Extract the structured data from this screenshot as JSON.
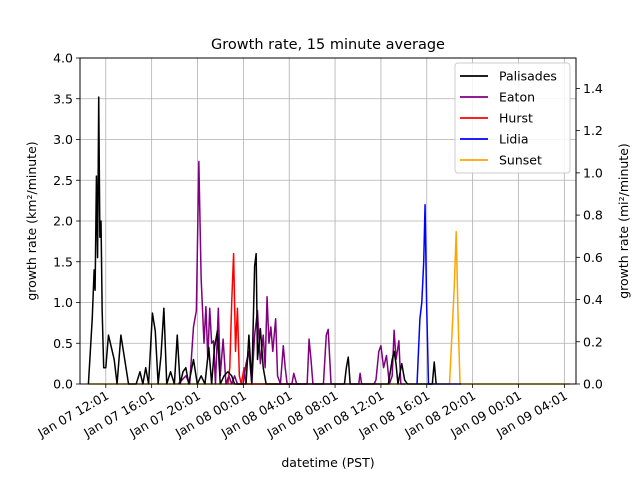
{
  "chart_data": {
    "type": "line",
    "title": "Growth rate, 15 minute average",
    "xlabel": "datetime (PST)",
    "ylabel_left": "growth rate (km²/minute)",
    "ylabel_right": "growth rate (mi²/minute)",
    "ylim_left": [
      0,
      4.0
    ],
    "ylim_right": [
      0,
      1.544
    ],
    "xlim": [
      "2025-01-07T09:46",
      "2025-01-09T05:02"
    ],
    "grid": true,
    "legend_placement": "top-right",
    "x_ticks": [
      "Jan 07 12:01",
      "Jan 07 16:01",
      "Jan 07 20:01",
      "Jan 08 00:01",
      "Jan 08 04:01",
      "Jan 08 08:01",
      "Jan 08 12:01",
      "Jan 08 16:01",
      "Jan 08 20:01",
      "Jan 09 00:01",
      "Jan 09 04:01"
    ],
    "y_ticks_left": [
      "0.0",
      "0.5",
      "1.0",
      "1.5",
      "2.0",
      "2.5",
      "3.0",
      "3.5",
      "4.0"
    ],
    "y_ticks_right": [
      "0.0",
      "0.2",
      "0.4",
      "0.6",
      "0.8",
      "1.0",
      "1.2",
      "1.4"
    ],
    "series": [
      {
        "name": "Palisades",
        "color": "#000000",
        "points": [
          [
            "2025-01-07T10:30",
            0.0
          ],
          [
            "2025-01-07T10:50",
            0.8
          ],
          [
            "2025-01-07T11:00",
            1.4
          ],
          [
            "2025-01-07T11:05",
            1.15
          ],
          [
            "2025-01-07T11:12",
            2.55
          ],
          [
            "2025-01-07T11:18",
            1.55
          ],
          [
            "2025-01-07T11:24",
            3.52
          ],
          [
            "2025-01-07T11:30",
            1.8
          ],
          [
            "2025-01-07T11:36",
            2.0
          ],
          [
            "2025-01-07T11:42",
            0.9
          ],
          [
            "2025-01-07T11:50",
            0.2
          ],
          [
            "2025-01-07T12:01",
            0.2
          ],
          [
            "2025-01-07T12:15",
            0.6
          ],
          [
            "2025-01-07T12:30",
            0.45
          ],
          [
            "2025-01-07T12:45",
            0.3
          ],
          [
            "2025-01-07T13:00",
            0.0
          ],
          [
            "2025-01-07T13:20",
            0.6
          ],
          [
            "2025-01-07T13:40",
            0.3
          ],
          [
            "2025-01-07T14:00",
            0.0
          ],
          [
            "2025-01-07T14:40",
            0.0
          ],
          [
            "2025-01-07T15:00",
            0.15
          ],
          [
            "2025-01-07T15:15",
            0.0
          ],
          [
            "2025-01-07T15:30",
            0.2
          ],
          [
            "2025-01-07T15:45",
            0.0
          ],
          [
            "2025-01-07T16:05",
            0.87
          ],
          [
            "2025-01-07T16:20",
            0.65
          ],
          [
            "2025-01-07T16:35",
            0.0
          ],
          [
            "2025-01-07T16:50",
            0.35
          ],
          [
            "2025-01-07T17:05",
            0.93
          ],
          [
            "2025-01-07T17:20",
            0.0
          ],
          [
            "2025-01-07T17:40",
            0.15
          ],
          [
            "2025-01-07T18:00",
            0.0
          ],
          [
            "2025-01-07T18:15",
            0.6
          ],
          [
            "2025-01-07T18:30",
            0.0
          ],
          [
            "2025-01-07T18:45",
            0.15
          ],
          [
            "2025-01-07T19:00",
            0.2
          ],
          [
            "2025-01-07T19:15",
            0.0
          ],
          [
            "2025-01-07T19:40",
            0.3
          ],
          [
            "2025-01-07T20:00",
            0.0
          ],
          [
            "2025-01-07T20:20",
            0.1
          ],
          [
            "2025-01-07T20:40",
            0.0
          ],
          [
            "2025-01-07T21:00",
            0.45
          ],
          [
            "2025-01-07T21:15",
            0.0
          ],
          [
            "2025-01-07T21:30",
            0.45
          ],
          [
            "2025-01-07T21:45",
            0.65
          ],
          [
            "2025-01-07T22:00",
            0.0
          ],
          [
            "2025-01-07T22:20",
            0.1
          ],
          [
            "2025-01-07T22:40",
            0.15
          ],
          [
            "2025-01-07T23:00",
            0.1
          ],
          [
            "2025-01-07T23:15",
            0.0
          ],
          [
            "2025-01-08T00:15",
            0.0
          ],
          [
            "2025-01-08T00:30",
            0.6
          ],
          [
            "2025-01-08T00:45",
            0.0
          ],
          [
            "2025-01-08T01:00",
            1.45
          ],
          [
            "2025-01-08T01:08",
            1.6
          ],
          [
            "2025-01-08T01:15",
            0.3
          ],
          [
            "2025-01-08T01:30",
            0.68
          ],
          [
            "2025-01-08T01:45",
            0.2
          ],
          [
            "2025-01-08T02:00",
            0.0
          ],
          [
            "2025-01-08T08:50",
            0.0
          ],
          [
            "2025-01-08T09:00",
            0.2
          ],
          [
            "2025-01-08T09:10",
            0.33
          ],
          [
            "2025-01-08T09:20",
            0.0
          ],
          [
            "2025-01-08T12:40",
            0.0
          ],
          [
            "2025-01-08T13:00",
            0.3
          ],
          [
            "2025-01-08T13:10",
            0.4
          ],
          [
            "2025-01-08T13:20",
            0.25
          ],
          [
            "2025-01-08T13:30",
            0.0
          ],
          [
            "2025-01-08T13:50",
            0.25
          ],
          [
            "2025-01-08T14:05",
            0.05
          ],
          [
            "2025-01-08T14:20",
            0.0
          ],
          [
            "2025-01-08T16:30",
            0.0
          ],
          [
            "2025-01-08T16:40",
            0.27
          ],
          [
            "2025-01-08T16:50",
            0.0
          ]
        ]
      },
      {
        "name": "Eaton",
        "color": "#800080",
        "points": [
          [
            "2025-01-07T18:20",
            0.0
          ],
          [
            "2025-01-07T19:00",
            0.1
          ],
          [
            "2025-01-07T19:20",
            0.0
          ],
          [
            "2025-01-07T19:40",
            0.7
          ],
          [
            "2025-01-07T19:55",
            0.9
          ],
          [
            "2025-01-07T20:08",
            2.73
          ],
          [
            "2025-01-07T20:20",
            1.3
          ],
          [
            "2025-01-07T20:35",
            0.5
          ],
          [
            "2025-01-07T20:45",
            0.95
          ],
          [
            "2025-01-07T20:55",
            0.3
          ],
          [
            "2025-01-07T21:05",
            0.93
          ],
          [
            "2025-01-07T21:15",
            0.5
          ],
          [
            "2025-01-07T21:25",
            0.53
          ],
          [
            "2025-01-07T21:35",
            0.0
          ],
          [
            "2025-01-07T21:50",
            0.93
          ],
          [
            "2025-01-07T22:00",
            0.1
          ],
          [
            "2025-01-07T22:15",
            0.55
          ],
          [
            "2025-01-07T22:30",
            0.0
          ],
          [
            "2025-01-07T22:45",
            0.1
          ],
          [
            "2025-01-07T23:00",
            0.0
          ],
          [
            "2025-01-07T23:15",
            0.1
          ],
          [
            "2025-01-07T23:30",
            0.0
          ],
          [
            "2025-01-08T00:00",
            0.0
          ],
          [
            "2025-01-08T00:15",
            0.25
          ],
          [
            "2025-01-08T00:30",
            0.4
          ],
          [
            "2025-01-08T00:45",
            0.0
          ],
          [
            "2025-01-08T01:00",
            0.6
          ],
          [
            "2025-01-08T01:15",
            0.9
          ],
          [
            "2025-01-08T01:30",
            0.25
          ],
          [
            "2025-01-08T01:45",
            0.6
          ],
          [
            "2025-01-08T01:55",
            0.2
          ],
          [
            "2025-01-08T02:05",
            1.07
          ],
          [
            "2025-01-08T02:15",
            0.5
          ],
          [
            "2025-01-08T02:25",
            0.7
          ],
          [
            "2025-01-08T02:35",
            0.4
          ],
          [
            "2025-01-08T02:50",
            0.8
          ],
          [
            "2025-01-08T03:00",
            0.1
          ],
          [
            "2025-01-08T03:15",
            0.0
          ],
          [
            "2025-01-08T03:30",
            0.47
          ],
          [
            "2025-01-08T03:40",
            0.2
          ],
          [
            "2025-01-08T03:50",
            0.0
          ],
          [
            "2025-01-08T04:15",
            0.0
          ],
          [
            "2025-01-08T04:25",
            0.13
          ],
          [
            "2025-01-08T04:40",
            0.0
          ],
          [
            "2025-01-08T05:35",
            0.0
          ],
          [
            "2025-01-08T05:45",
            0.55
          ],
          [
            "2025-01-08T05:55",
            0.3
          ],
          [
            "2025-01-08T06:05",
            0.0
          ],
          [
            "2025-01-08T07:00",
            0.0
          ],
          [
            "2025-01-08T07:15",
            0.6
          ],
          [
            "2025-01-08T07:25",
            0.67
          ],
          [
            "2025-01-08T07:40",
            0.0
          ],
          [
            "2025-01-08T10:05",
            0.0
          ],
          [
            "2025-01-08T10:12",
            0.13
          ],
          [
            "2025-01-08T10:20",
            0.0
          ],
          [
            "2025-01-08T11:25",
            0.0
          ],
          [
            "2025-01-08T11:35",
            0.05
          ],
          [
            "2025-01-08T11:50",
            0.4
          ],
          [
            "2025-01-08T12:01",
            0.47
          ],
          [
            "2025-01-08T12:15",
            0.2
          ],
          [
            "2025-01-08T12:30",
            0.35
          ],
          [
            "2025-01-08T12:45",
            0.0
          ],
          [
            "2025-01-08T13:00",
            0.1
          ],
          [
            "2025-01-08T13:10",
            0.66
          ],
          [
            "2025-01-08T13:20",
            0.3
          ],
          [
            "2025-01-08T13:35",
            0.53
          ],
          [
            "2025-01-08T13:45",
            0.0
          ],
          [
            "2025-01-08T14:10",
            0.0
          ]
        ]
      },
      {
        "name": "Hurst",
        "color": "#ff0000",
        "points": [
          [
            "2025-01-07T22:40",
            0.0
          ],
          [
            "2025-01-07T22:50",
            0.2
          ],
          [
            "2025-01-07T23:00",
            1.0
          ],
          [
            "2025-01-07T23:10",
            1.6
          ],
          [
            "2025-01-07T23:20",
            0.4
          ],
          [
            "2025-01-07T23:30",
            0.93
          ],
          [
            "2025-01-07T23:40",
            0.1
          ],
          [
            "2025-01-07T23:50",
            0.0
          ],
          [
            "2025-01-08T00:05",
            0.2
          ],
          [
            "2025-01-08T00:15",
            0.0
          ],
          [
            "2025-01-08T05:00",
            0.0
          ]
        ]
      },
      {
        "name": "Lidia",
        "color": "#0000ff",
        "points": [
          [
            "2025-01-08T15:10",
            0.0
          ],
          [
            "2025-01-08T15:25",
            0.8
          ],
          [
            "2025-01-08T15:35",
            1.0
          ],
          [
            "2025-01-08T15:45",
            1.5
          ],
          [
            "2025-01-08T15:52",
            2.2
          ],
          [
            "2025-01-08T16:00",
            1.0
          ],
          [
            "2025-01-08T16:10",
            0.0
          ],
          [
            "2025-01-08T19:00",
            0.0
          ]
        ]
      },
      {
        "name": "Sunset",
        "color": "#ffa500",
        "points": [
          [
            "2025-01-07T10:30",
            0.0
          ],
          [
            "2025-01-08T18:00",
            0.0
          ],
          [
            "2025-01-08T18:25",
            1.2
          ],
          [
            "2025-01-08T18:35",
            1.87
          ],
          [
            "2025-01-08T18:45",
            0.8
          ],
          [
            "2025-01-08T18:55",
            0.0
          ],
          [
            "2025-01-09T04:30",
            0.0
          ]
        ]
      }
    ]
  }
}
